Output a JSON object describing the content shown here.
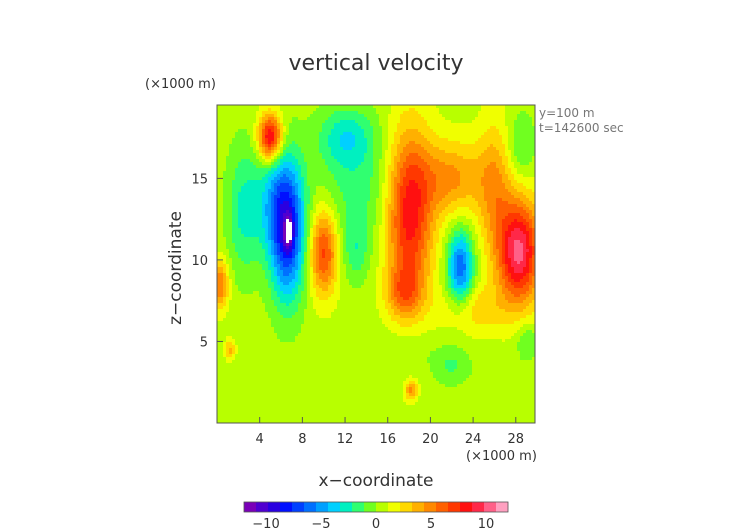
{
  "chart_data": {
    "type": "heatmap",
    "title": "vertical velocity",
    "xlabel": "x−coordinate",
    "ylabel": "z−coordinate",
    "x_unit": "(×1000 m)",
    "y_unit": "(×1000 m)",
    "annotations": [
      "y=100 m",
      "t=142600 sec"
    ],
    "xlim": [
      0,
      29.8
    ],
    "ylim": [
      0,
      19.5
    ],
    "x_ticks": [
      4,
      8,
      12,
      16,
      20,
      24,
      28
    ],
    "y_ticks": [
      5,
      10,
      15
    ],
    "x_tick_labels": [
      "4",
      "8",
      "12",
      "16",
      "20",
      "24",
      "28"
    ],
    "y_tick_labels": [
      "5",
      "10",
      "15"
    ],
    "colorbar": {
      "range": [
        -12,
        12
      ],
      "ticks": [
        -10,
        -5,
        0,
        5,
        10
      ],
      "tick_labels": [
        "−10",
        "−5",
        "0",
        "5",
        "10"
      ],
      "colors": [
        "#7a00b8",
        "#5000d0",
        "#2a00e0",
        "#0010ff",
        "#0040ff",
        "#0070ff",
        "#00a0ff",
        "#00d0ff",
        "#00f0c0",
        "#30ff70",
        "#70ff20",
        "#b8ff00",
        "#f0ff00",
        "#ffd800",
        "#ffb000",
        "#ff8800",
        "#ff6000",
        "#ff3800",
        "#ff1010",
        "#ff2848",
        "#ff6088",
        "#ffa0c0"
      ]
    },
    "field_features": [
      {
        "x": 6.6,
        "z": 11.8,
        "sx": 1.6,
        "sz": 4.2,
        "amp": -9.0
      },
      {
        "x": 5.2,
        "z": 13.5,
        "sx": 1.8,
        "sz": 3.2,
        "amp": -3.0
      },
      {
        "x": 2.5,
        "z": 13.0,
        "sx": 1.6,
        "sz": 4.0,
        "amp": -3.0
      },
      {
        "x": 6.7,
        "z": 11.7,
        "sx": 0.35,
        "sz": 0.9,
        "amp": -6.0
      },
      {
        "x": 5.0,
        "z": 17.5,
        "sx": 1.1,
        "sz": 1.4,
        "amp": 9.0
      },
      {
        "x": 10.0,
        "z": 10.5,
        "sx": 1.3,
        "sz": 2.6,
        "amp": 6.5
      },
      {
        "x": 13.5,
        "z": 14.5,
        "sx": 4.0,
        "sz": 4.0,
        "amp": -2.2
      },
      {
        "x": 13.0,
        "z": 10.5,
        "sx": 1.2,
        "sz": 1.8,
        "amp": -2.0
      },
      {
        "x": 18.0,
        "z": 12.8,
        "sx": 2.2,
        "sz": 5.2,
        "amp": 8.0
      },
      {
        "x": 22.0,
        "z": 15.0,
        "sx": 3.0,
        "sz": 2.3,
        "amp": 4.0
      },
      {
        "x": 22.8,
        "z": 9.5,
        "sx": 1.2,
        "sz": 2.3,
        "amp": -7.0
      },
      {
        "x": 28.3,
        "z": 10.5,
        "sx": 2.0,
        "sz": 3.2,
        "amp": 9.5
      },
      {
        "x": 26.0,
        "z": 14.5,
        "sx": 1.6,
        "sz": 4.0,
        "amp": 3.5
      },
      {
        "x": 28.5,
        "z": 17.0,
        "sx": 1.3,
        "sz": 2.0,
        "amp": -2.0
      },
      {
        "x": 29.0,
        "z": 5.0,
        "sx": 1.0,
        "sz": 1.2,
        "amp": -2.0
      },
      {
        "x": 0.3,
        "z": 8.5,
        "sx": 0.8,
        "sz": 1.5,
        "amp": 5.0
      },
      {
        "x": 17.5,
        "z": 8.0,
        "sx": 1.6,
        "sz": 1.5,
        "amp": 3.5
      },
      {
        "x": 24.0,
        "z": 7.0,
        "sx": 3.0,
        "sz": 1.5,
        "amp": 2.5
      },
      {
        "x": 18.0,
        "z": 4.5,
        "sx": 3.0,
        "sz": 1.4,
        "amp": -0.8
      },
      {
        "x": 22.0,
        "z": 3.5,
        "sx": 1.8,
        "sz": 1.2,
        "amp": -1.8
      },
      {
        "x": 18.2,
        "z": 2.0,
        "sx": 0.6,
        "sz": 0.6,
        "amp": 4.0
      },
      {
        "x": 1.2,
        "z": 4.5,
        "sx": 0.5,
        "sz": 0.6,
        "amp": 3.0
      },
      {
        "x": 12.0,
        "z": 17.5,
        "sx": 2.5,
        "sz": 1.8,
        "amp": -3.0
      }
    ]
  }
}
